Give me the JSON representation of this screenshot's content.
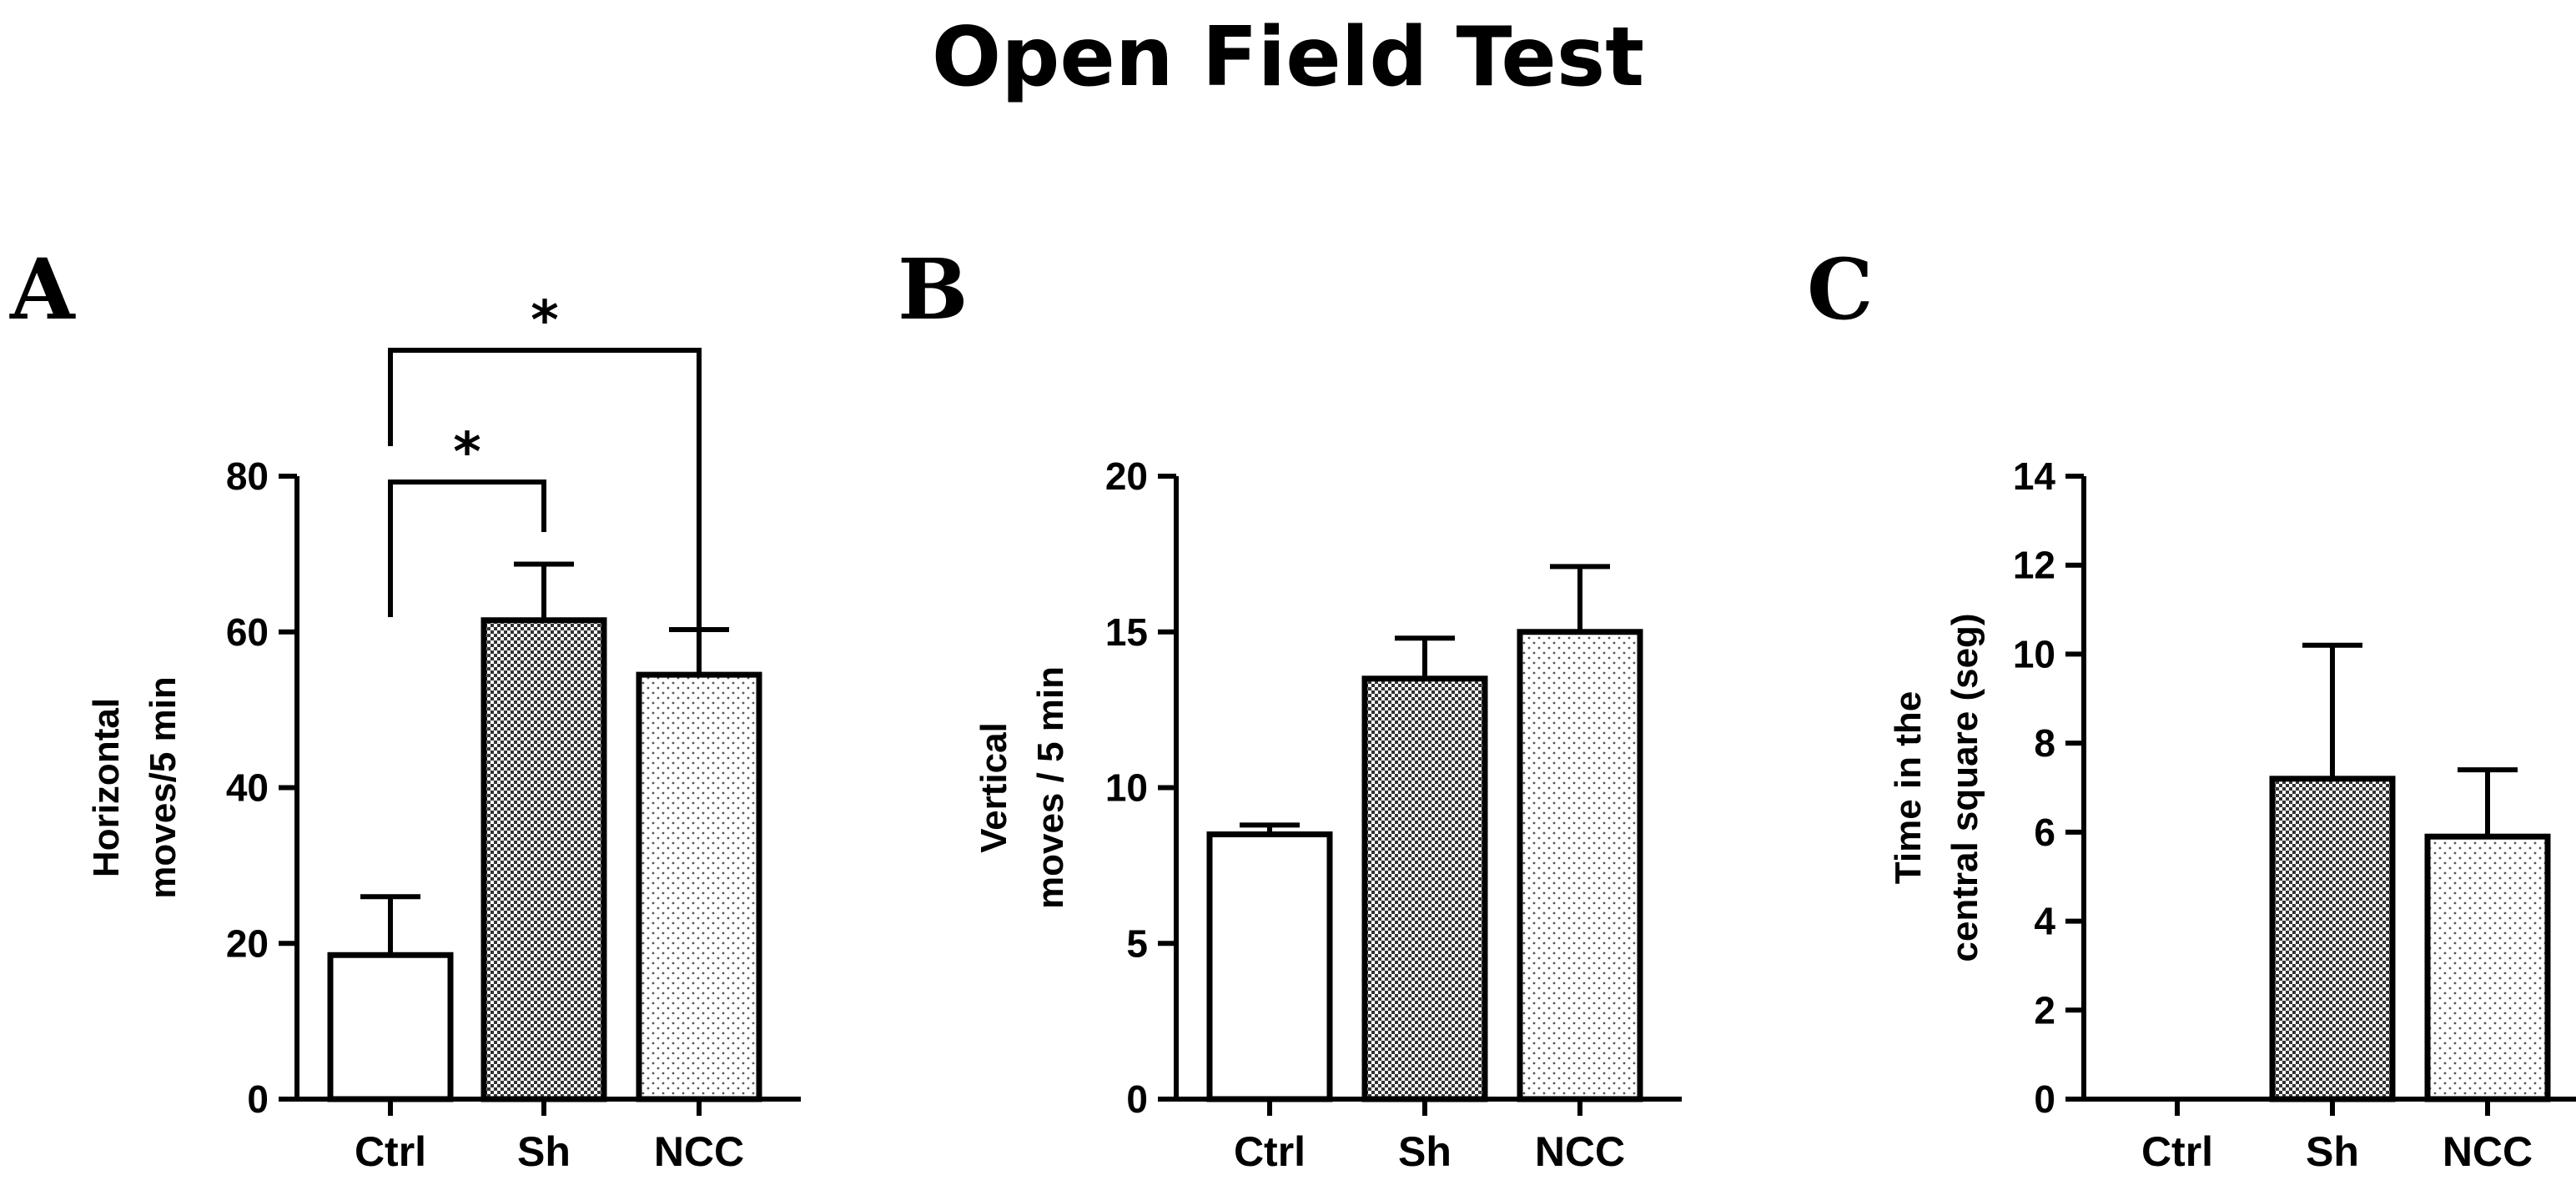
{
  "title": "Open Field Test",
  "colors": {
    "ink": "#000000",
    "background": "#ffffff",
    "checker": "#333333",
    "dots": "#555555"
  },
  "chart_data": [
    {
      "type": "bar",
      "panel": "A",
      "categories": [
        "Ctrl",
        "Sh",
        "NCC"
      ],
      "values": [
        18.5,
        61.5,
        54.5
      ],
      "errors": [
        7.5,
        7.2,
        5.8
      ],
      "patterns": [
        "plain",
        "checker",
        "dots"
      ],
      "ylabel": [
        "Horizontal",
        "moves/5 min"
      ],
      "ylim": [
        0,
        80
      ],
      "yticks": [
        0,
        20,
        40,
        60,
        80
      ],
      "tick_labels": [
        "0",
        "20",
        "40",
        "60",
        "80"
      ],
      "annotations": [
        {
          "from": "Ctrl",
          "to": "Sh",
          "label": "*"
        },
        {
          "from": "Ctrl",
          "to": "NCC",
          "label": "*"
        }
      ]
    },
    {
      "type": "bar",
      "panel": "B",
      "categories": [
        "Ctrl",
        "Sh",
        "NCC"
      ],
      "values": [
        8.5,
        13.5,
        15.0
      ],
      "errors": [
        0.3,
        1.3,
        2.1
      ],
      "patterns": [
        "plain",
        "checker",
        "dots"
      ],
      "ylabel": [
        "Vertical",
        "moves / 5 min"
      ],
      "ylim": [
        0,
        20
      ],
      "yticks": [
        0,
        5,
        10,
        15,
        20
      ],
      "tick_labels": [
        "0",
        "5",
        "10",
        "15",
        "20"
      ],
      "annotations": []
    },
    {
      "type": "bar",
      "panel": "C",
      "categories": [
        "Ctrl",
        "Sh",
        "NCC"
      ],
      "values": [
        0,
        7.2,
        5.9
      ],
      "errors": [
        0,
        3.0,
        1.5
      ],
      "patterns": [
        "plain",
        "checker",
        "dots"
      ],
      "ylabel": [
        "Time in the",
        "central square (seg)"
      ],
      "ylim": [
        0,
        14
      ],
      "yticks": [
        0,
        2,
        4,
        6,
        8,
        10,
        12,
        14
      ],
      "tick_labels": [
        "0",
        "2",
        "4",
        "6",
        "8",
        "10",
        "12",
        "14"
      ],
      "annotations": []
    }
  ]
}
